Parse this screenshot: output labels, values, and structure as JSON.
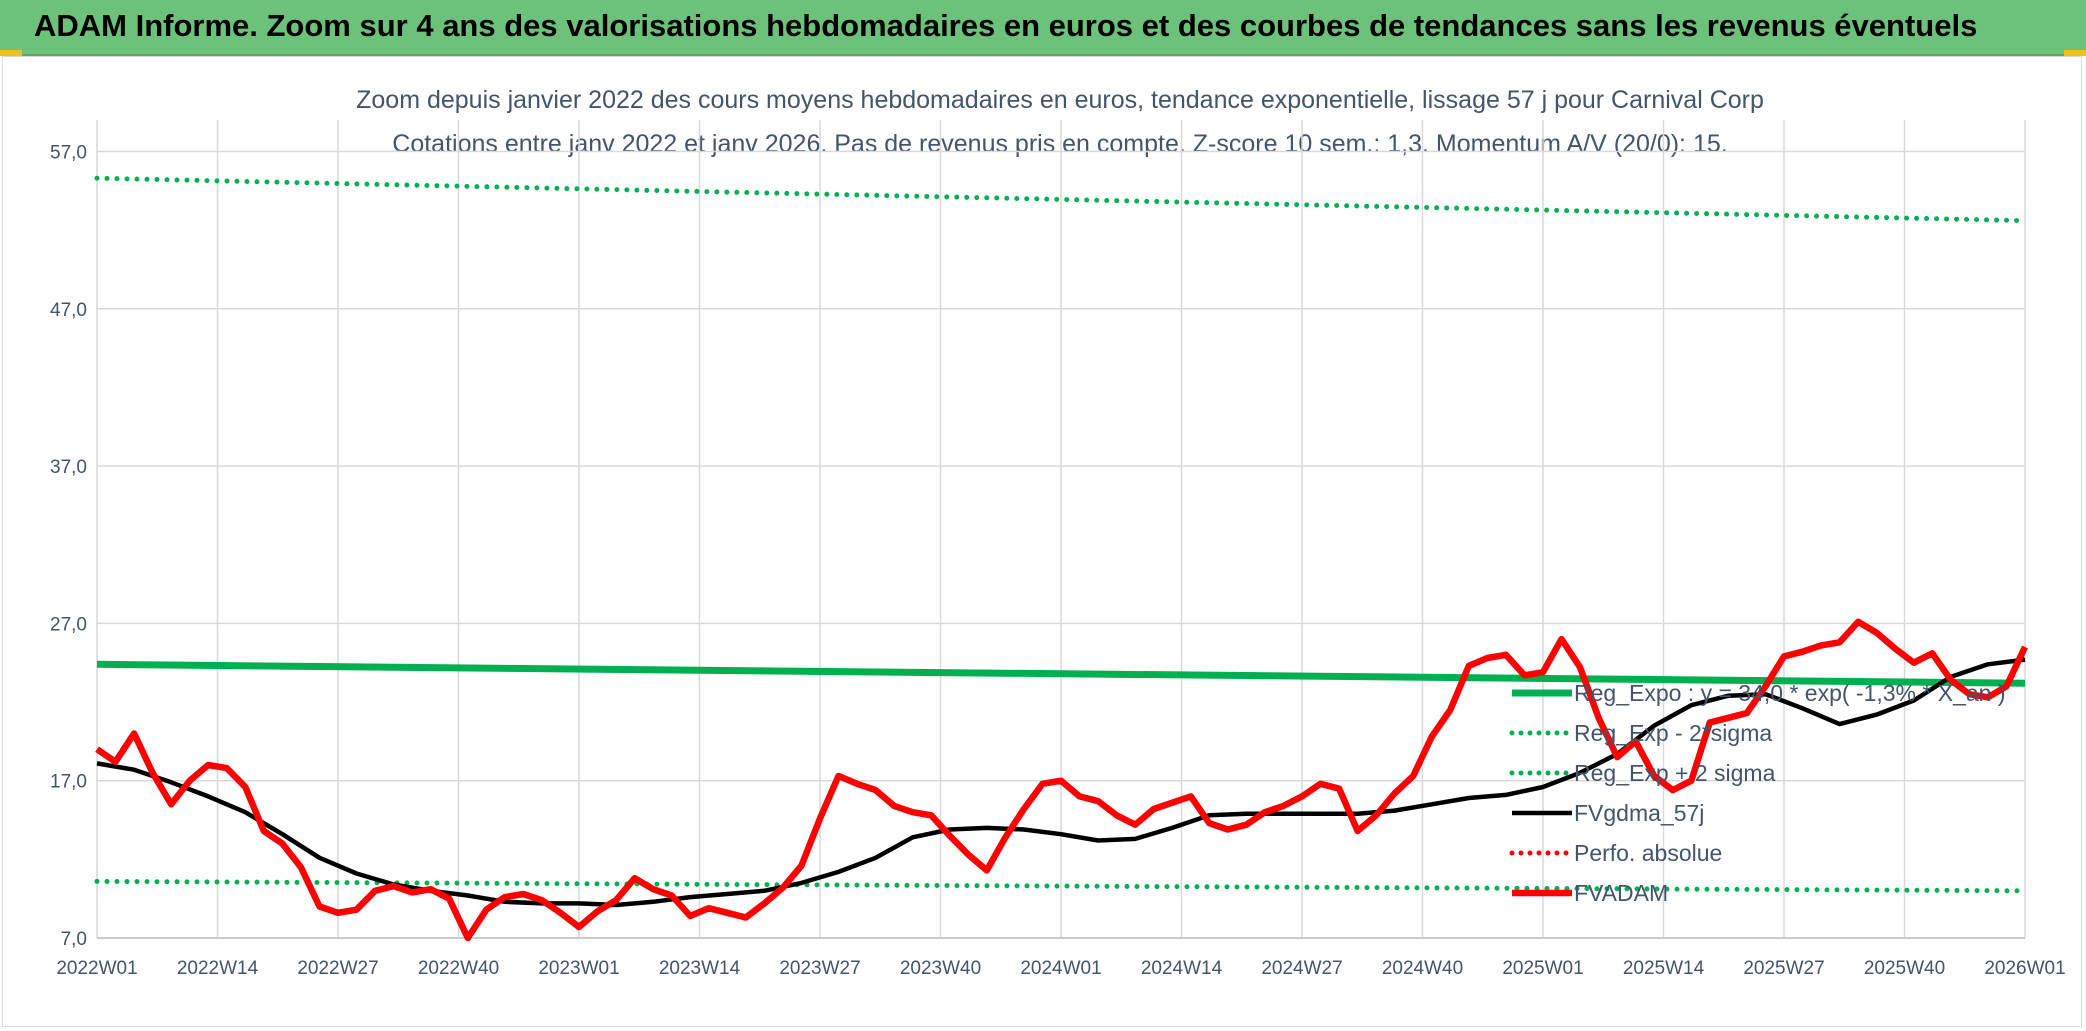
{
  "banner": {
    "title": "ADAM Informe. Zoom sur 4 ans des valorisations hebdomadaires en euros et des courbes de tendances sans les revenus éventuels"
  },
  "colors": {
    "banner": "#6cc27a",
    "reg_line": "#00b050",
    "sigma_dots": "#00b050",
    "fvgdma": "#000000",
    "fvadam": "#ff0000",
    "perf_absolue": "#ff0000",
    "text": "#44546a"
  },
  "chart_data": {
    "type": "line",
    "title": "Zoom depuis janvier 2022 des cours moyens hebdomadaires en euros, tendance exponentielle, lissage 57 j pour Carnival Corp",
    "subtitle": "Cotations entre janv 2022 et janv 2026. Pas de revenus pris en compte. Z-score 10 sem.: 1,3. Momentum A/V (20/0): 15.",
    "xlabel": "",
    "ylabel": "",
    "x_ticks": [
      "2022W01",
      "2022W14",
      "2022W27",
      "2022W40",
      "2023W01",
      "2023W14",
      "2023W27",
      "2023W40",
      "2024W01",
      "2024W14",
      "2024W27",
      "2024W40",
      "2025W01",
      "2025W14",
      "2025W27",
      "2025W40",
      "2026W01"
    ],
    "y_ticks": [
      "7,0",
      "17,0",
      "27,0",
      "37,0",
      "47,0",
      "57,0"
    ],
    "ylim": [
      7,
      59
    ],
    "x_range_weeks": [
      0,
      208
    ],
    "grid": true,
    "legend_position": "lower-right",
    "series": [
      {
        "name": "Reg_Expo : y = 34,0 * exp( -1,3% * X_an )",
        "style": "solid",
        "color": "#00b050",
        "x": [
          0,
          208
        ],
        "values": [
          24.4,
          23.2
        ]
      },
      {
        "name": "Reg_Exp - 2*sigma",
        "style": "dotted",
        "color": "#00b050",
        "x": [
          0,
          208
        ],
        "values": [
          10.6,
          10.0
        ]
      },
      {
        "name": "Reg_Exp + 2 sigma",
        "style": "dotted",
        "color": "#00b050",
        "x": [
          0,
          208
        ],
        "values": [
          55.3,
          52.6
        ]
      },
      {
        "name": "FVgdma_57j",
        "style": "solid",
        "color": "#000000",
        "x": [
          0,
          4,
          8,
          12,
          16,
          20,
          24,
          28,
          32,
          36,
          40,
          44,
          48,
          52,
          56,
          60,
          64,
          68,
          72,
          76,
          80,
          84,
          88,
          92,
          96,
          100,
          104,
          108,
          112,
          116,
          120,
          124,
          128,
          132,
          136,
          140,
          144,
          148,
          152,
          156,
          160,
          164,
          168,
          172,
          176,
          180,
          184,
          188,
          192,
          196,
          200,
          204,
          208
        ],
        "values": [
          18.1,
          17.7,
          16.9,
          16.0,
          15.0,
          13.6,
          12.1,
          11.1,
          10.4,
          10.0,
          9.7,
          9.3,
          9.2,
          9.2,
          9.1,
          9.3,
          9.6,
          9.8,
          10.0,
          10.5,
          11.2,
          12.1,
          13.4,
          13.9,
          14.0,
          13.9,
          13.6,
          13.2,
          13.3,
          14.0,
          14.8,
          14.9,
          14.9,
          14.9,
          14.9,
          15.1,
          15.5,
          15.9,
          16.1,
          16.6,
          17.5,
          18.7,
          20.5,
          21.8,
          22.4,
          22.5,
          21.6,
          20.6,
          21.2,
          22.1,
          23.6,
          24.4,
          24.7
        ]
      },
      {
        "name": "Perfo. absolue",
        "style": "dotted",
        "color": "#ff0000",
        "x": [],
        "values": []
      },
      {
        "name": "FVADAM",
        "style": "solid",
        "color": "#ff0000",
        "x": [
          0,
          2,
          4,
          6,
          8,
          10,
          12,
          14,
          16,
          18,
          20,
          22,
          24,
          26,
          28,
          30,
          32,
          34,
          36,
          38,
          40,
          42,
          44,
          46,
          48,
          50,
          52,
          54,
          56,
          58,
          60,
          62,
          64,
          66,
          68,
          70,
          72,
          74,
          76,
          78,
          80,
          82,
          84,
          86,
          88,
          90,
          92,
          94,
          96,
          98,
          100,
          102,
          104,
          106,
          108,
          110,
          112,
          114,
          116,
          118,
          120,
          122,
          124,
          126,
          128,
          130,
          132,
          134,
          136,
          138,
          140,
          142,
          144,
          146,
          148,
          150,
          152,
          154,
          156,
          158,
          160,
          162,
          164,
          166,
          168,
          170,
          172,
          174,
          176,
          178,
          180,
          182,
          184,
          186,
          188,
          190,
          192,
          194,
          196,
          198,
          200,
          202,
          204,
          206,
          208
        ],
        "values": [
          19.0,
          18.2,
          20.0,
          17.5,
          15.5,
          17.0,
          18.0,
          17.8,
          16.6,
          13.8,
          13.0,
          11.5,
          9.0,
          8.6,
          8.8,
          10.0,
          10.3,
          9.9,
          10.1,
          9.5,
          7.0,
          8.8,
          9.6,
          9.8,
          9.4,
          8.6,
          7.7,
          8.7,
          9.4,
          10.8,
          10.1,
          9.7,
          8.4,
          8.9,
          8.6,
          8.3,
          9.2,
          10.2,
          11.6,
          14.6,
          17.3,
          16.8,
          16.4,
          15.4,
          15.0,
          14.8,
          13.5,
          12.3,
          11.3,
          13.4,
          15.2,
          16.8,
          17.0,
          16.0,
          15.7,
          14.8,
          14.2,
          15.2,
          15.6,
          16.0,
          14.3,
          13.9,
          14.2,
          15.0,
          15.4,
          16.0,
          16.8,
          16.5,
          13.8,
          14.8,
          16.2,
          17.3,
          19.8,
          21.5,
          24.3,
          24.8,
          25.0,
          23.7,
          23.9,
          26.0,
          24.2,
          21.0,
          18.5,
          19.5,
          17.3,
          16.4,
          17.0,
          20.7,
          21.0,
          21.3,
          23.0,
          24.9,
          25.2,
          25.6,
          25.8,
          27.1,
          26.4,
          25.4,
          24.5,
          25.1,
          23.4,
          22.5,
          22.3,
          23.0,
          25.5
        ]
      }
    ]
  }
}
